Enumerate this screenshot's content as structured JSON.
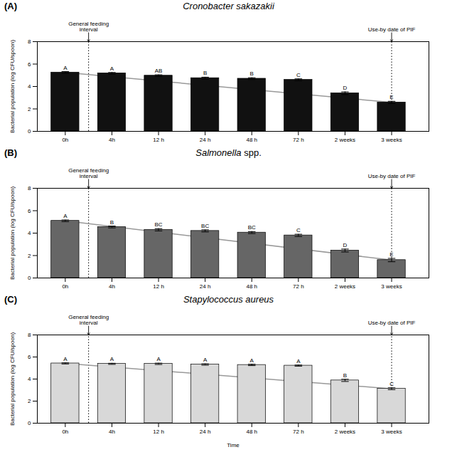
{
  "chart_data": [
    {
      "type": "bar",
      "panel_label": "(A)",
      "title": "Cronobacter sakazakii",
      "title_italic": "Cronobacter sakazakii",
      "categories": [
        "0h",
        "4h",
        "12 h",
        "24 h",
        "48 h",
        "72 h",
        "2 weeks",
        "3 weeks"
      ],
      "values": [
        5.25,
        5.18,
        4.97,
        4.75,
        4.7,
        4.6,
        3.4,
        2.58
      ],
      "errors": [
        0.08,
        0.07,
        0.07,
        0.08,
        0.08,
        0.08,
        0.12,
        0.1
      ],
      "letters": [
        "A",
        "A",
        "AB",
        "B",
        "B",
        "C",
        "D",
        "E"
      ],
      "color": "#111111",
      "trend_line": {
        "x": [
          "0h",
          "3 weeks"
        ],
        "values": [
          5.25,
          2.58
        ],
        "color": "#999999"
      },
      "ylabel": "Bacterial population (log CFU/spoon)",
      "ylim": [
        0,
        8
      ],
      "yticks": [
        0,
        2,
        4,
        6,
        8
      ],
      "grid": false,
      "annotations": [
        {
          "text": "General feeding\ninterval",
          "x": [
            "0h",
            "4h"
          ]
        },
        {
          "text": "Use-by date of PIF",
          "x": "3 weeks"
        }
      ]
    },
    {
      "type": "bar",
      "panel_label": "(B)",
      "title": "Salmonella spp.",
      "title_italic": "Salmonella",
      "categories": [
        "0h",
        "4h",
        "12 h",
        "24 h",
        "48 h",
        "72 h",
        "2 weeks",
        "3 weeks"
      ],
      "values": [
        5.1,
        4.55,
        4.3,
        4.2,
        4.05,
        3.8,
        2.45,
        1.6
      ],
      "errors": [
        0.07,
        0.08,
        0.1,
        0.09,
        0.09,
        0.1,
        0.13,
        0.15
      ],
      "letters": [
        "A",
        "B",
        "BC",
        "BC",
        "BC",
        "C",
        "D",
        "E"
      ],
      "color": "#666666",
      "trend_line": {
        "x": [
          "0h",
          "3 weeks"
        ],
        "values": [
          5.1,
          1.6
        ],
        "color": "#999999"
      },
      "ylabel": "Bacterial population (log CFU/spoon)",
      "ylim": [
        0,
        8
      ],
      "yticks": [
        0,
        2,
        4,
        6,
        8
      ],
      "grid": false,
      "annotations": [
        {
          "text": "General feeding\ninterval",
          "x": [
            "0h",
            "4h"
          ]
        },
        {
          "text": "Use-by date of PIF",
          "x": "3 weeks"
        }
      ]
    },
    {
      "type": "bar",
      "panel_label": "(C)",
      "title": "Stapylococcus aureus",
      "title_italic": "Stapylococcus aureus",
      "categories": [
        "0h",
        "4h",
        "12 h",
        "24 h",
        "48 h",
        "72 h",
        "2 weeks",
        "3 weeks"
      ],
      "values": [
        5.42,
        5.38,
        5.38,
        5.32,
        5.28,
        5.22,
        3.88,
        3.12
      ],
      "errors": [
        0.05,
        0.05,
        0.06,
        0.06,
        0.06,
        0.05,
        0.1,
        0.08
      ],
      "letters": [
        "A",
        "A",
        "A",
        "A",
        "A",
        "A",
        "B",
        "C"
      ],
      "color": "#d8d8d8",
      "trend_line": {
        "x": [
          "0h",
          "3 weeks"
        ],
        "values": [
          5.42,
          3.12
        ],
        "color": "#999999"
      },
      "ylabel": "Bacterial population (log CFU/spoon)",
      "xlabel": "Time",
      "ylim": [
        0,
        8
      ],
      "yticks": [
        0,
        2,
        4,
        6,
        8
      ],
      "grid": false,
      "annotations": [
        {
          "text": "General feeding\ninterval",
          "x": [
            "0h",
            "4h"
          ]
        },
        {
          "text": "Use-by date of PIF",
          "x": "3 weeks"
        }
      ]
    }
  ]
}
